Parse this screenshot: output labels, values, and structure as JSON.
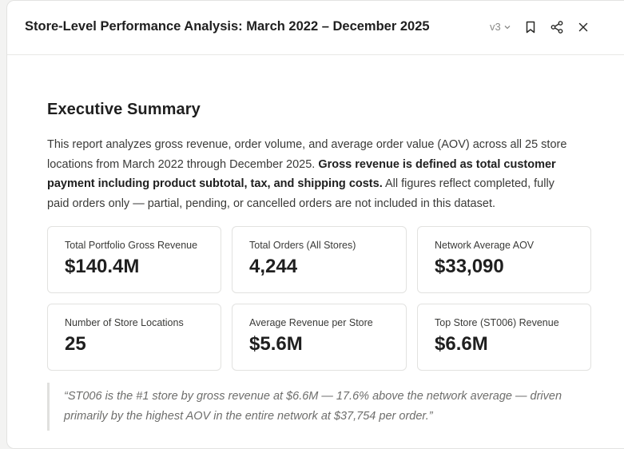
{
  "header": {
    "title": "Store-Level Performance Analysis: March 2022 – December 2025",
    "version": "v3",
    "icons": [
      "bookmark-icon",
      "share-icon",
      "close-icon"
    ]
  },
  "summary": {
    "heading": "Executive Summary",
    "para_part1": "This report analyzes gross revenue, order volume, and average order value (AOV) across all 25 store locations from March 2022 through December 2025. ",
    "para_bold": "Gross revenue is defined as total customer payment including product subtotal, tax, and shipping costs.",
    "para_part2": " All figures reflect completed, fully paid orders only — partial, pending, or cancelled orders are not included in this dataset."
  },
  "metrics": [
    {
      "label": "Total Portfolio Gross Revenue",
      "value": "$140.4M"
    },
    {
      "label": "Total Orders (All Stores)",
      "value": "4,244"
    },
    {
      "label": "Network Average AOV",
      "value": "$33,090"
    },
    {
      "label": "Number of Store Locations",
      "value": "25"
    },
    {
      "label": "Average Revenue per Store",
      "value": "$5.6M"
    },
    {
      "label": "Top Store (ST006) Revenue",
      "value": "$6.6M"
    }
  ],
  "quote": "“ST006 is the #1 store by gross revenue at $6.6M — 17.6% above the network average — driven primarily by the highest AOV in the entire network at $37,754 per order.”"
}
